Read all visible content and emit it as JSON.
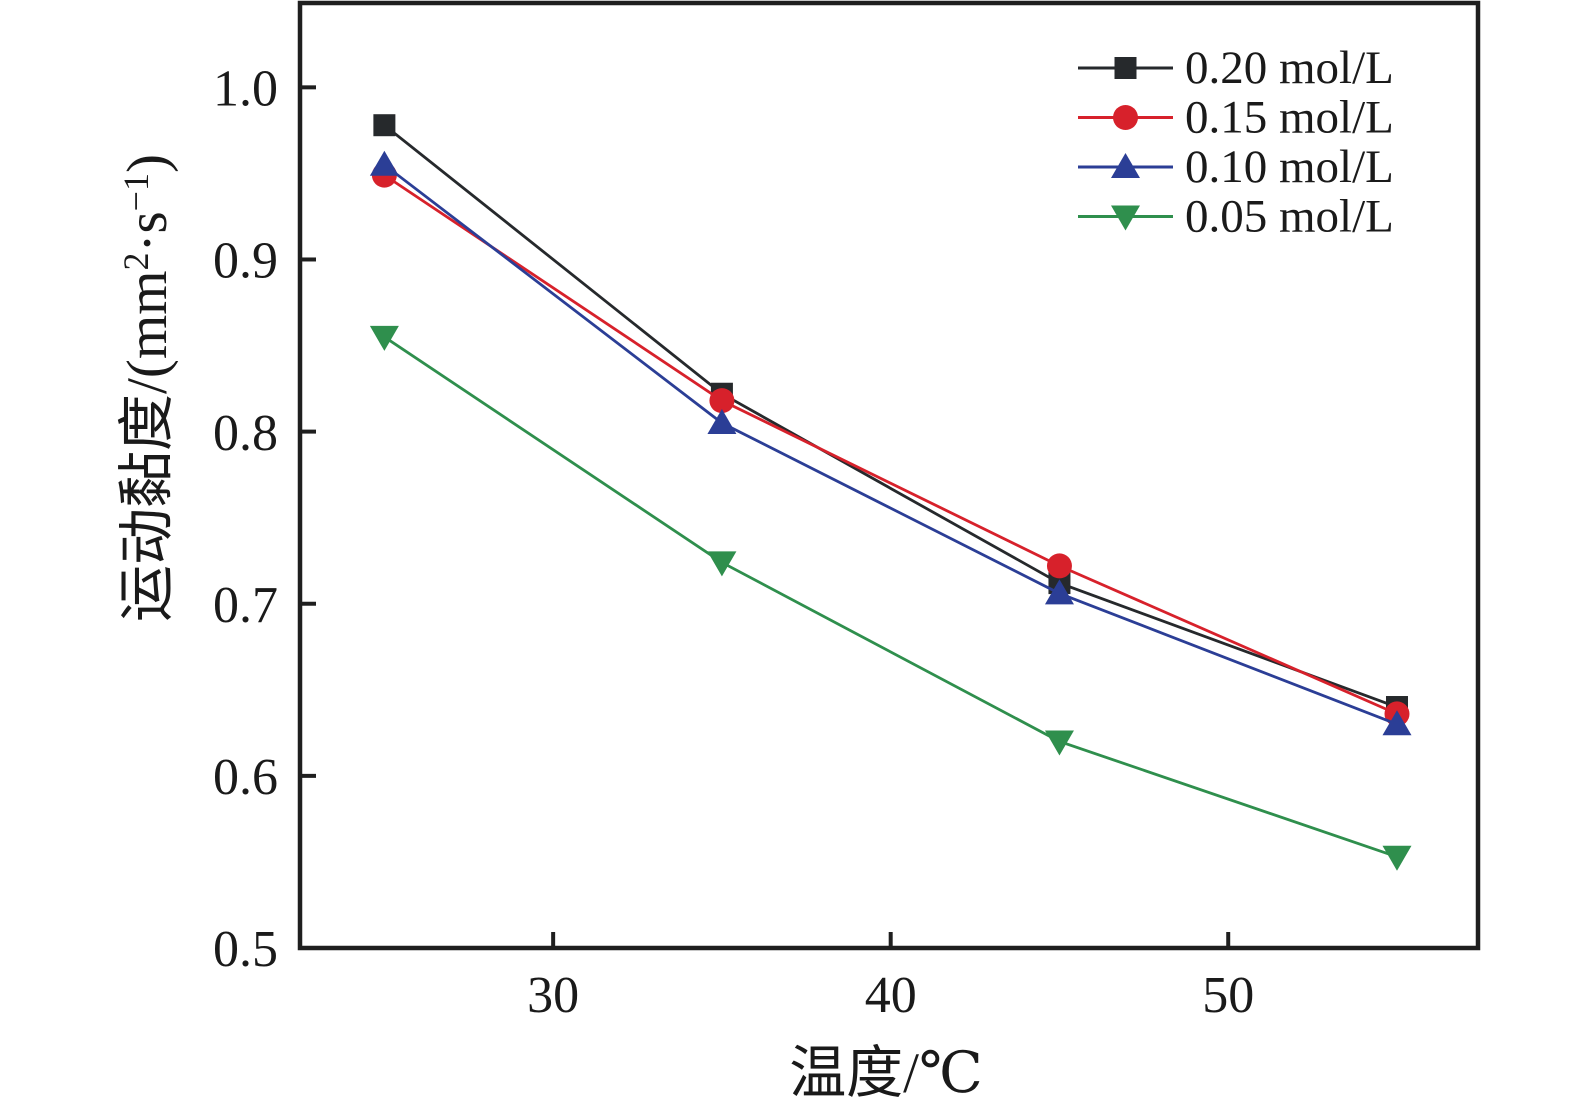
{
  "figure": {
    "background": "#ffffff",
    "axis_color": "#1f1f1f",
    "text_color": "#1a1a1a"
  },
  "chart_data": {
    "type": "line",
    "title": "",
    "xlabel": "温度/℃",
    "ylabel": "运动黏度/(mm²·s⁻¹)",
    "ylabel_parts": {
      "main1": "运动黏度/(mm",
      "sup1": "2",
      "main2": "·s",
      "sup2": "−1",
      "main3": ")"
    },
    "x": [
      25,
      35,
      45,
      55
    ],
    "xlim": [
      22.5,
      57.4
    ],
    "x_ticks": [
      30,
      40,
      50
    ],
    "x_tick_labels": [
      "30",
      "40",
      "50"
    ],
    "ylim": [
      0.5,
      1.049
    ],
    "y_ticks": [
      0.5,
      0.6,
      0.7,
      0.8,
      0.9,
      1.0
    ],
    "y_tick_labels": [
      "0.5",
      "0.6",
      "0.7",
      "0.8",
      "0.9",
      "1.0"
    ],
    "grid": false,
    "legend_position": "top-right",
    "series": [
      {
        "name": "0.20 mol/L",
        "color": "#26292c",
        "marker": "square",
        "values": [
          0.978,
          0.822,
          0.712,
          0.64
        ]
      },
      {
        "name": "0.15 mol/L",
        "color": "#d7212b",
        "marker": "circle",
        "values": [
          0.949,
          0.818,
          0.722,
          0.636
        ]
      },
      {
        "name": "0.10 mol/L",
        "color": "#2b3e96",
        "marker": "triangle-up",
        "values": [
          0.955,
          0.805,
          0.706,
          0.63
        ]
      },
      {
        "name": "0.05 mol/L",
        "color": "#2f8f4d",
        "marker": "triangle-down",
        "values": [
          0.855,
          0.724,
          0.62,
          0.553
        ]
      }
    ]
  }
}
